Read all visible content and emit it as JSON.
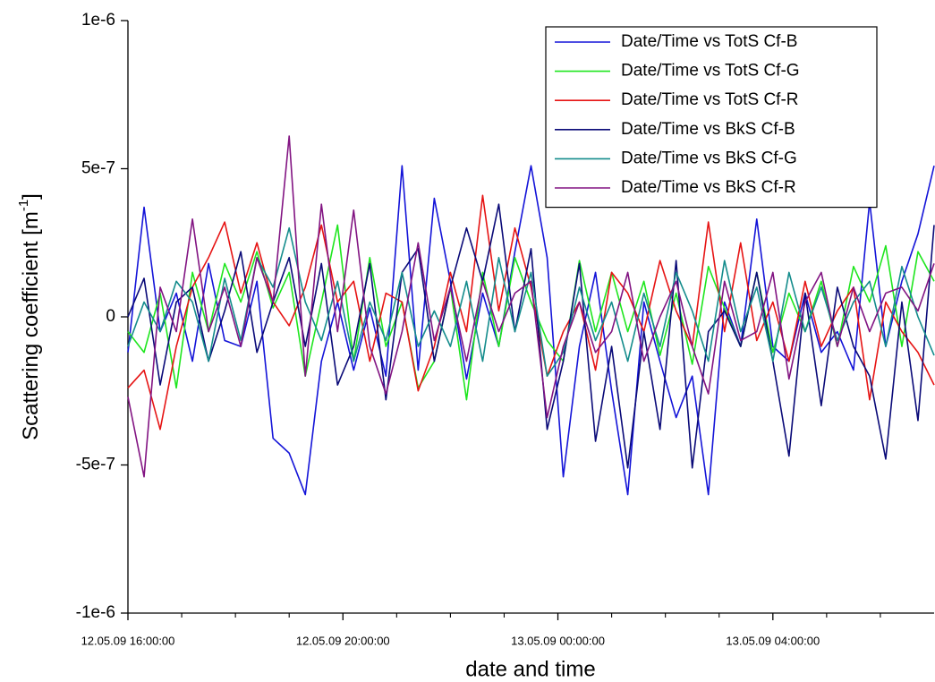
{
  "chart_data": {
    "type": "line",
    "x_label": "date and time",
    "y_label": {
      "text": "Scattering coefficient [m",
      "sup": "-1",
      "end": "]"
    },
    "x": [
      "12.05.09 16:00:00",
      "12.05.09 16:18:00",
      "12.05.09 16:36:00",
      "12.05.09 16:54:00",
      "12.05.09 17:12:00",
      "12.05.09 17:30:00",
      "12.05.09 17:48:00",
      "12.05.09 18:06:00",
      "12.05.09 18:24:00",
      "12.05.09 18:42:00",
      "12.05.09 19:00:00",
      "12.05.09 19:18:00",
      "12.05.09 19:36:00",
      "12.05.09 19:54:00",
      "12.05.09 20:12:00",
      "12.05.09 20:30:00",
      "12.05.09 20:48:00",
      "12.05.09 21:06:00",
      "12.05.09 21:24:00",
      "12.05.09 21:42:00",
      "12.05.09 22:00:00",
      "12.05.09 22:18:00",
      "12.05.09 22:36:00",
      "12.05.09 22:54:00",
      "12.05.09 23:12:00",
      "12.05.09 23:30:00",
      "12.05.09 23:48:00",
      "13.05.09 00:06:00",
      "13.05.09 00:24:00",
      "13.05.09 00:42:00",
      "13.05.09 01:00:00",
      "13.05.09 01:18:00",
      "13.05.09 01:36:00",
      "13.05.09 01:54:00",
      "13.05.09 02:12:00",
      "13.05.09 02:30:00",
      "13.05.09 02:48:00",
      "13.05.09 03:06:00",
      "13.05.09 03:24:00",
      "13.05.09 03:42:00",
      "13.05.09 04:00:00",
      "13.05.09 04:18:00",
      "13.05.09 04:36:00",
      "13.05.09 04:54:00",
      "13.05.09 05:12:00",
      "13.05.09 05:30:00",
      "13.05.09 05:48:00",
      "13.05.09 06:06:00",
      "13.05.09 06:24:00",
      "13.05.09 06:42:00",
      "13.05.09 07:00:00"
    ],
    "series": [
      {
        "name": "Date/Time vs TotS Cf-B",
        "color": "#1414d8",
        "values": [
          -1.2e-07,
          3.7e-07,
          -5e-08,
          8e-08,
          -1.5e-07,
          1.8e-07,
          -8e-08,
          -1e-07,
          1.2e-07,
          -4.1e-07,
          -4.6e-07,
          -6e-07,
          -1.5e-07,
          5e-08,
          -1.8e-07,
          3e-08,
          -2e-07,
          5.1e-07,
          -1.8e-07,
          4e-07,
          1.2e-07,
          -2.1e-07,
          8e-08,
          -1e-07,
          2.2e-07,
          5.1e-07,
          2e-07,
          -5.4e-07,
          -1e-07,
          1.5e-07,
          -2.5e-07,
          -6e-07,
          5e-08,
          -1.5e-07,
          -3.4e-07,
          -2e-07,
          -6e-07,
          5e-08,
          -1e-07,
          3.3e-07,
          -1e-07,
          -1.5e-07,
          8e-08,
          -1.2e-07,
          -5e-08,
          -1.8e-07,
          3.9e-07,
          -1e-07,
          1.2e-07,
          2.8e-07,
          5.1e-07
        ]
      },
      {
        "name": "Date/Time vs TotS Cf-G",
        "color": "#1ee61e",
        "values": [
          -5e-08,
          -1.2e-07,
          8e-08,
          -2.4e-07,
          1.5e-07,
          -5e-08,
          1.8e-07,
          5e-08,
          2.2e-07,
          3e-08,
          1.5e-07,
          -2e-07,
          5e-08,
          3.1e-07,
          -1.5e-07,
          2e-07,
          -1e-07,
          5e-08,
          -2.4e-07,
          -1.5e-07,
          1e-07,
          -2.8e-07,
          1.5e-07,
          -1e-07,
          2e-07,
          5e-08,
          -8e-08,
          -1.5e-07,
          1.9e-07,
          -5e-08,
          1.5e-07,
          -5e-08,
          1.2e-07,
          -1.3e-07,
          8e-08,
          -1.6e-07,
          1.7e-07,
          3e-08,
          -1e-07,
          1.5e-07,
          -1.2e-07,
          8e-08,
          -5e-08,
          1.2e-07,
          -1e-07,
          1.7e-07,
          5e-08,
          2.4e-07,
          -1e-07,
          2.2e-07,
          1.2e-07
        ]
      },
      {
        "name": "Date/Time vs TotS Cf-R",
        "color": "#e61414",
        "values": [
          -2.4e-07,
          -1.8e-07,
          -3.8e-07,
          -1e-07,
          1e-07,
          2e-07,
          3.2e-07,
          8e-08,
          2.5e-07,
          5e-08,
          -3e-08,
          1e-07,
          3.1e-07,
          5e-08,
          1.2e-07,
          -1.5e-07,
          8e-08,
          5e-08,
          -2.5e-07,
          -1e-07,
          1.5e-07,
          -5e-08,
          4.1e-07,
          2e-08,
          3e-07,
          1e-07,
          -2e-07,
          -5e-08,
          5e-08,
          -1.8e-07,
          1.5e-07,
          8e-08,
          -5e-08,
          1.9e-07,
          2e-08,
          -1e-07,
          3.2e-07,
          -5e-08,
          2.5e-07,
          -8e-08,
          5e-08,
          -1.5e-07,
          1.2e-07,
          -1e-07,
          2e-08,
          1e-07,
          -2.8e-07,
          5e-08,
          -5e-08,
          -1.2e-07,
          -2.3e-07
        ]
      },
      {
        "name": "Date/Time vs BkS Cf-B",
        "color": "#0a0a78",
        "values": [
          0,
          1.3e-07,
          -2.3e-07,
          5e-08,
          1e-07,
          -1.5e-07,
          2e-08,
          2.2e-07,
          -1.2e-07,
          5e-08,
          2e-07,
          -1e-07,
          1.8e-07,
          -2.3e-07,
          -1e-07,
          1.8e-07,
          -2.8e-07,
          1.5e-07,
          2.3e-07,
          -1.5e-07,
          1e-07,
          3e-07,
          1.2e-07,
          3.8e-07,
          -5e-08,
          2.3e-07,
          -3.8e-07,
          -1.5e-07,
          1.8e-07,
          -4.2e-07,
          -1e-07,
          -5.1e-07,
          -5e-08,
          -3.8e-07,
          1.9e-07,
          -5.1e-07,
          -5e-08,
          2e-08,
          -1e-07,
          1.5e-07,
          -1.5e-07,
          -4.7e-07,
          8e-08,
          -3e-07,
          1e-07,
          -1e-07,
          -2e-07,
          -4.8e-07,
          5e-08,
          -3.5e-07,
          3.1e-07
        ]
      },
      {
        "name": "Date/Time vs BkS Cf-G",
        "color": "#148c8c",
        "values": [
          -1e-07,
          5e-08,
          -5e-08,
          1.2e-07,
          5e-08,
          -1.5e-07,
          1.3e-07,
          -8e-08,
          2e-07,
          1e-07,
          3e-07,
          5e-08,
          -8e-08,
          1.2e-07,
          -1.5e-07,
          5e-08,
          -8e-08,
          1.5e-07,
          -1e-07,
          2e-08,
          -1e-07,
          1.2e-07,
          -1.5e-07,
          2e-07,
          -5e-08,
          1.5e-07,
          -2e-07,
          -1.2e-07,
          1e-07,
          -8e-08,
          5e-08,
          -1.5e-07,
          8e-08,
          -1e-07,
          1.5e-07,
          2e-08,
          -1.5e-07,
          1.9e-07,
          -5e-08,
          1e-07,
          -1.5e-07,
          1.5e-07,
          -5e-08,
          1e-07,
          -8e-08,
          5e-08,
          1.2e-07,
          -1e-07,
          1.7e-07,
          0,
          -1.3e-07
        ]
      },
      {
        "name": "Date/Time vs BkS Cf-R",
        "color": "#821482",
        "values": [
          -2.7e-07,
          -5.4e-07,
          1e-07,
          -5e-08,
          3.3e-07,
          -5e-08,
          1e-07,
          -1e-07,
          2e-07,
          5e-08,
          6.1e-07,
          -2e-07,
          3.8e-07,
          -5e-08,
          3.6e-07,
          -1e-07,
          -2.6e-07,
          -5e-08,
          2.5e-07,
          -8e-08,
          1e-07,
          -1.5e-07,
          1.2e-07,
          -5e-08,
          8e-08,
          1.2e-07,
          -3.4e-07,
          -1e-07,
          5e-08,
          -1.2e-07,
          -5e-08,
          1.5e-07,
          -1.5e-07,
          0,
          1.2e-07,
          -1e-07,
          -2.6e-07,
          1.2e-07,
          -8e-08,
          -5e-08,
          1.5e-07,
          -2.1e-07,
          5e-08,
          1.5e-07,
          -1e-07,
          1e-07,
          -5e-08,
          8e-08,
          1e-07,
          2e-08,
          1.8e-07
        ]
      }
    ],
    "xlim": [
      "12.05.09 16:00:00",
      "13.05.09 07:00:00"
    ],
    "xticks": [
      "12.05.09 16:00:00",
      "12.05.09 20:00:00",
      "13.05.09 00:00:00",
      "13.05.09 04:00:00"
    ],
    "xminorticks": [
      "12.05.09 17:00:00",
      "12.05.09 18:00:00",
      "12.05.09 19:00:00",
      "12.05.09 21:00:00",
      "12.05.09 22:00:00",
      "12.05.09 23:00:00",
      "13.05.09 01:00:00",
      "13.05.09 02:00:00",
      "13.05.09 03:00:00",
      "13.05.09 05:00:00",
      "13.05.09 06:00:00"
    ],
    "ylim": [
      -1e-06,
      1e-06
    ],
    "yticks": [
      {
        "value": -1e-06,
        "label": "-1e-6"
      },
      {
        "value": -5e-07,
        "label": "-5e-7"
      },
      0,
      {
        "value": 5e-07,
        "label": "5e-7"
      },
      {
        "value": 1e-06,
        "label": "1e-6"
      }
    ],
    "legend": "upper right"
  }
}
